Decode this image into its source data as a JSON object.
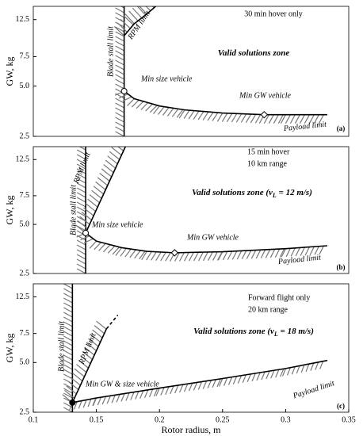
{
  "chart_data": [
    {
      "type": "line",
      "ylabel": "GW, kg",
      "log_y": true,
      "xlim": [
        0.1,
        0.35
      ],
      "ylim": [
        2.5,
        15
      ],
      "yticks": [
        2.5,
        {
          "value": 5,
          "label": "5.0"
        },
        7.5,
        12.5
      ],
      "info": [
        "30 min hover only"
      ],
      "zone_label": [
        "Valid solutions zone"
      ],
      "tag": "(a)",
      "series": [
        {
          "name": "Blade stall limit",
          "color": "#000000",
          "hatch": "left",
          "x": [
            0.172,
            0.172
          ],
          "values": [
            2.5,
            15
          ]
        },
        {
          "name": "RPM limit",
          "color": "#000000",
          "hatch": "left",
          "x": [
            0.172,
            0.18,
            0.19,
            0.197
          ],
          "values": [
            10,
            11.8,
            13.5,
            15
          ]
        },
        {
          "name": "Payload limit",
          "color": "#000000",
          "hatch": "below",
          "x": [
            0.172,
            0.18,
            0.2,
            0.22,
            0.25,
            0.283,
            0.3,
            0.333
          ],
          "values": [
            4.66,
            4.2,
            3.8,
            3.6,
            3.45,
            3.37,
            3.37,
            3.37
          ]
        }
      ],
      "points": [
        {
          "label": "Min size vehicle",
          "x": 0.172,
          "y": 4.66,
          "marker": "circle"
        },
        {
          "label": "Min GW vehicle",
          "x": 0.283,
          "y": 3.37,
          "marker": "diamond"
        }
      ]
    },
    {
      "type": "line",
      "ylabel": "GW, kg",
      "log_y": true,
      "xlim": [
        0.1,
        0.35
      ],
      "ylim": [
        2.5,
        15
      ],
      "yticks": [
        2.5,
        {
          "value": 5,
          "label": "5.0"
        },
        7.5,
        12.5
      ],
      "info": [
        "15 min hover",
        "10 km range"
      ],
      "zone_label": [
        "Valid solutions zone (",
        "v",
        "L",
        " = 12 m/s)"
      ],
      "tag": "(b)",
      "series": [
        {
          "name": "Blade stall limit",
          "color": "#000000",
          "hatch": "left",
          "x": [
            0.1415,
            0.1415
          ],
          "values": [
            2.5,
            15
          ]
        },
        {
          "name": "RPM limit",
          "color": "#000000",
          "hatch": "left",
          "x": [
            0.1415,
            0.173
          ],
          "values": [
            4.43,
            15
          ]
        },
        {
          "name": "Payload limit",
          "color": "#000000",
          "hatch": "below",
          "x": [
            0.1415,
            0.15,
            0.17,
            0.19,
            0.212,
            0.25,
            0.3,
            0.333
          ],
          "values": [
            4.43,
            3.95,
            3.6,
            3.42,
            3.35,
            3.4,
            3.55,
            3.7
          ]
        }
      ],
      "points": [
        {
          "label": "Min size vehicle",
          "x": 0.1415,
          "y": 4.43,
          "marker": "circle"
        },
        {
          "label": "Min GW vehicle",
          "x": 0.212,
          "y": 3.35,
          "marker": "diamond"
        }
      ]
    },
    {
      "type": "line",
      "ylabel": "GW, kg",
      "xlabel": "Rotor radius, m",
      "log_y": true,
      "xlim": [
        0.1,
        0.35
      ],
      "ylim": [
        2.5,
        15
      ],
      "yticks": [
        2.5,
        {
          "value": 5,
          "label": "5.0"
        },
        7.5,
        12.5
      ],
      "xticks": [
        0.1,
        0.15,
        0.2,
        0.25,
        0.3,
        0.35
      ],
      "info": [
        "Forward flight only",
        "20 km range"
      ],
      "zone_label": [
        "Valid solutions zone (",
        "v",
        "L",
        " = 18 m/s)"
      ],
      "tag": "(c)",
      "series": [
        {
          "name": "Blade stall limit",
          "color": "#000000",
          "hatch": "left",
          "x": [
            0.131,
            0.131
          ],
          "values": [
            2.5,
            15
          ]
        },
        {
          "name": "RPM limit",
          "color": "#000000",
          "hatch": "left",
          "x": [
            0.131,
            0.158
          ],
          "values": [
            2.86,
            8.0
          ]
        },
        {
          "name": "Payload limit",
          "color": "#000000",
          "hatch": "below",
          "x": [
            0.131,
            0.15,
            0.2,
            0.25,
            0.3,
            0.333
          ],
          "values": [
            2.86,
            3.05,
            3.5,
            4.0,
            4.6,
            5.15
          ]
        },
        {
          "color": "#000000",
          "dashed": true,
          "x": [
            0.158,
            0.167
          ],
          "values": [
            8.0,
            9.7
          ]
        }
      ],
      "points": [
        {
          "label": "Min GW & size vehicle",
          "x": 0.131,
          "y": 2.86,
          "marker": "circle-filled"
        }
      ]
    }
  ]
}
